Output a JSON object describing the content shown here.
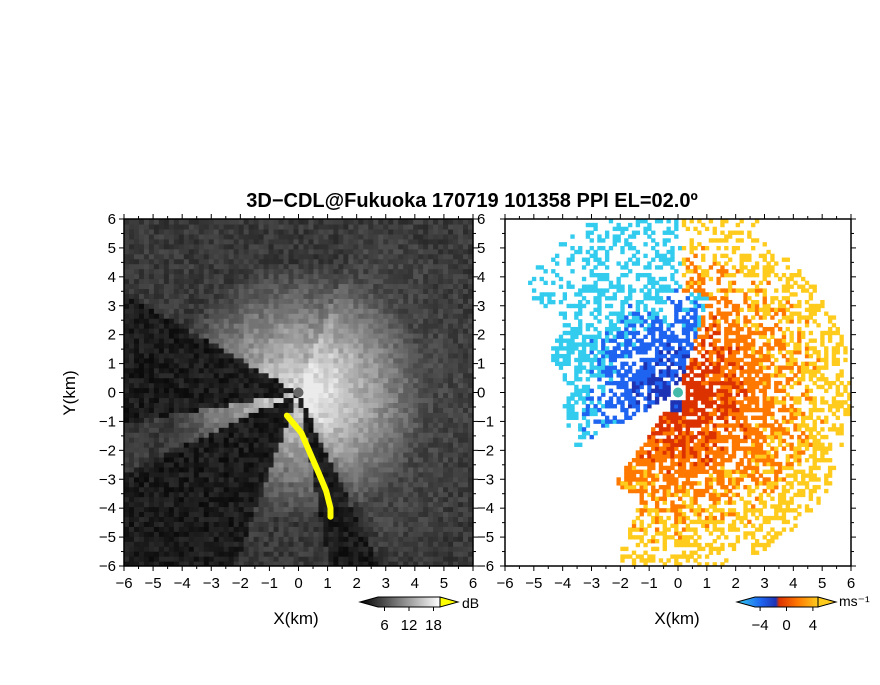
{
  "title": "3D−CDL@Fukuoka 170719 101358 PPI EL=02.0º",
  "chart_data": [
    {
      "type": "heatmap",
      "panel": "left",
      "quantity": "reflectivity / SNR",
      "xlabel": "X(km)",
      "ylabel": "Y(km)",
      "xlim": [
        -6,
        6
      ],
      "ylim": [
        -6,
        6
      ],
      "xticks": [
        -6,
        -5,
        -4,
        -3,
        -2,
        -1,
        0,
        1,
        2,
        3,
        4,
        5,
        6
      ],
      "yticks": [
        -6,
        -5,
        -4,
        -3,
        -2,
        -1,
        0,
        1,
        2,
        3,
        4,
        5,
        6
      ],
      "tick_labels": [
        "−6",
        "−5",
        "−4",
        "−3",
        "−2",
        "−1",
        "0",
        "1",
        "2",
        "3",
        "4",
        "5",
        "6"
      ],
      "colormap": "grayscale with yellow overflow",
      "colorbar": {
        "unit": "dB",
        "ticks": [
          6,
          12,
          18
        ],
        "tick_labels": [
          "6",
          "12",
          "18"
        ]
      },
      "radar_origin": [
        0,
        0
      ],
      "shadow_sectors_deg": [
        [
          155,
          170
        ],
        [
          200,
          245
        ],
        [
          260,
          300
        ]
      ],
      "yellow_band_points": [
        [
          -0.4,
          -0.8
        ],
        [
          0.1,
          -1.4
        ],
        [
          0.4,
          -2.1
        ],
        [
          0.7,
          -2.8
        ],
        [
          0.95,
          -3.4
        ],
        [
          1.1,
          -4.0
        ],
        [
          1.1,
          -4.3
        ]
      ]
    },
    {
      "type": "heatmap",
      "panel": "right",
      "quantity": "radial velocity",
      "xlabel": "X(km)",
      "ylabel": "",
      "xlim": [
        -6,
        6
      ],
      "ylim": [
        -6,
        6
      ],
      "xticks": [
        -6,
        -5,
        -4,
        -3,
        -2,
        -1,
        0,
        1,
        2,
        3,
        4,
        5,
        6
      ],
      "yticks": [
        -6,
        -5,
        -4,
        -3,
        -2,
        -1,
        0,
        1,
        2,
        3,
        4,
        5,
        6
      ],
      "tick_labels": [
        "−6",
        "−5",
        "−4",
        "−3",
        "−2",
        "−1",
        "0",
        "1",
        "2",
        "3",
        "4",
        "5",
        "6"
      ],
      "colormap": "cyan-blue-red-orange-yellow diverging",
      "colorbar": {
        "unit": "ms⁻¹",
        "ticks": [
          -4,
          0,
          4
        ],
        "tick_labels": [
          "−4",
          "0",
          "4"
        ]
      },
      "negative_region": "west and north (blue/cyan)",
      "positive_region": "east and south (red/orange/yellow)"
    }
  ],
  "colors": {
    "yellow_band": "#ffff00",
    "neg_strong": "#33ccee",
    "neg_mid": "#1e64f0",
    "neg_weak": "#1e32b4",
    "pos_weak": "#dc3200",
    "pos_mid": "#ff7800",
    "pos_strong": "#ffcc1e"
  }
}
